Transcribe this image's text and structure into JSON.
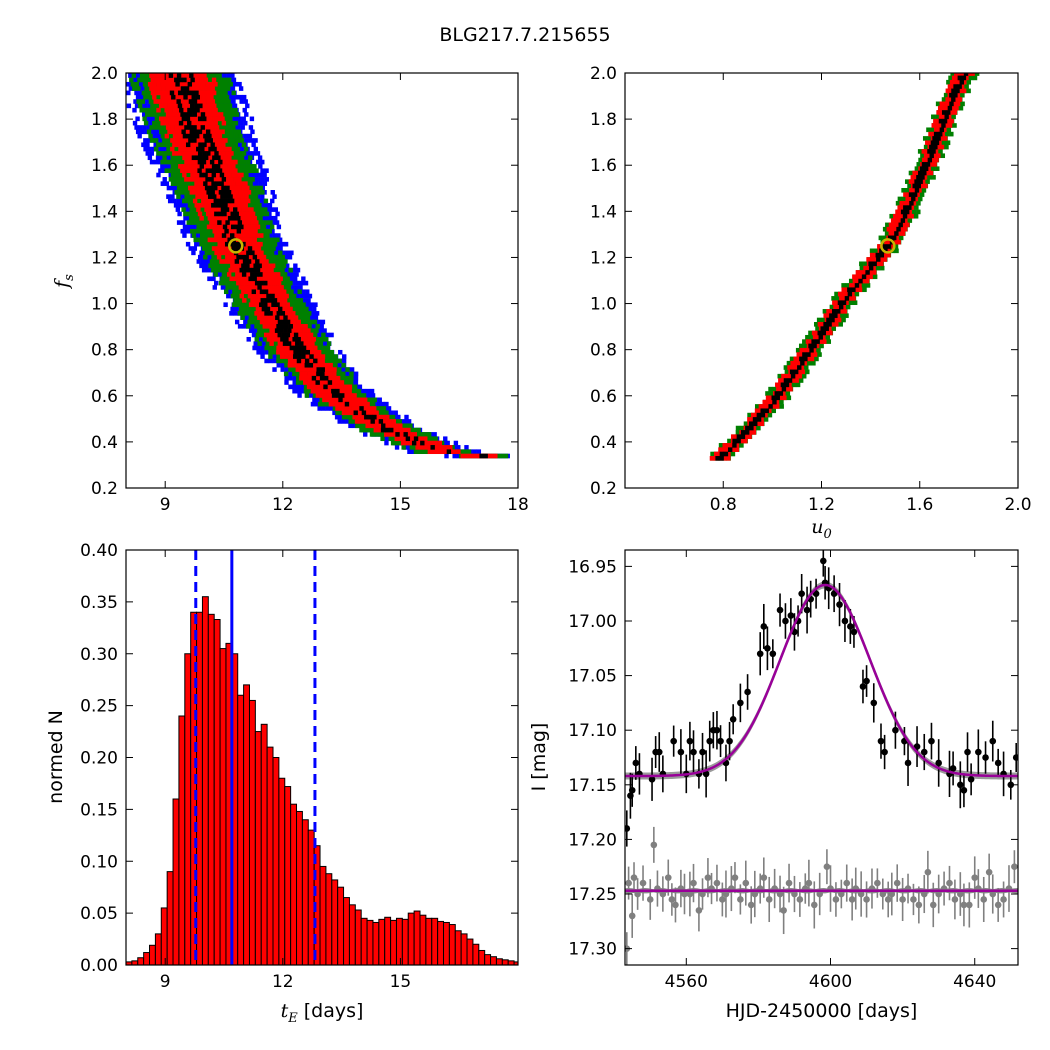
{
  "figure_title": "BLG217.7.215655",
  "chart_data": [
    {
      "id": "fs-vs-tE",
      "type": "heatmap",
      "title": "",
      "xlabel": "",
      "ylabel": "f_s",
      "ylabel_main": "f",
      "ylabel_sub": "s",
      "xlim": [
        8,
        18
      ],
      "ylim": [
        0.2,
        2.0
      ],
      "xticks": [
        "9",
        "12",
        "15",
        "18"
      ],
      "xtick_values": [
        9,
        12,
        15,
        18
      ],
      "yticks": [
        "0.2",
        "0.4",
        "0.6",
        "0.8",
        "1.0",
        "1.2",
        "1.4",
        "1.6",
        "1.8",
        "2.0"
      ],
      "ytick_values": [
        0.2,
        0.4,
        0.6,
        0.8,
        1.0,
        1.2,
        1.4,
        1.6,
        1.8,
        2.0
      ],
      "colors": {
        "1sigma": "#000000",
        "2sigma": "#ff0000",
        "3sigma": "#008000",
        "4sigma": "#0000ff",
        "marker": "#c8b400"
      },
      "ridge": [
        [
          9.3,
          2.0
        ],
        [
          9.8,
          1.7
        ],
        [
          10.3,
          1.5
        ],
        [
          10.8,
          1.25
        ],
        [
          11.6,
          1.0
        ],
        [
          12.3,
          0.8
        ],
        [
          13.3,
          0.6
        ],
        [
          14.6,
          0.45
        ],
        [
          16.0,
          0.35
        ],
        [
          17.0,
          0.33
        ]
      ],
      "widths": {
        "1sigma": 0.35,
        "2sigma": 0.85,
        "3sigma": 1.3,
        "4sigma": 1.6
      },
      "best_fit": [
        10.8,
        1.25
      ]
    },
    {
      "id": "fs-vs-u0",
      "type": "heatmap",
      "title": "",
      "xlabel": "u_0",
      "xlabel_main": "u",
      "xlabel_sub": "0",
      "ylabel": "",
      "xlim": [
        0.4,
        2.0
      ],
      "ylim": [
        0.2,
        2.0
      ],
      "xticks": [
        "0.8",
        "1.2",
        "1.6",
        "2.0"
      ],
      "xtick_values": [
        0.8,
        1.2,
        1.6,
        2.0
      ],
      "yticks": [
        "0.2",
        "0.4",
        "0.6",
        "0.8",
        "1.0",
        "1.2",
        "1.4",
        "1.6",
        "1.8",
        "2.0"
      ],
      "ytick_values": [
        0.2,
        0.4,
        0.6,
        0.8,
        1.0,
        1.2,
        1.4,
        1.6,
        1.8,
        2.0
      ],
      "ridge": [
        [
          0.78,
          0.32
        ],
        [
          0.9,
          0.45
        ],
        [
          1.0,
          0.57
        ],
        [
          1.1,
          0.72
        ],
        [
          1.2,
          0.87
        ],
        [
          1.3,
          1.03
        ],
        [
          1.4,
          1.16
        ],
        [
          1.47,
          1.25
        ],
        [
          1.55,
          1.42
        ],
        [
          1.65,
          1.67
        ],
        [
          1.72,
          1.87
        ],
        [
          1.78,
          2.0
        ]
      ],
      "widths": {
        "1sigma": 0.012,
        "2sigma": 0.035,
        "3sigma": 0.05
      },
      "best_fit": [
        1.47,
        1.25
      ]
    },
    {
      "id": "tE-histogram",
      "type": "bar",
      "title": "",
      "xlabel": "t_E  [days]",
      "xlabel_main": "t",
      "xlabel_sub": "E",
      "xlabel_rest": " [days]",
      "ylabel": "normed N",
      "xlim": [
        8.0,
        18.0
      ],
      "ylim": [
        0.0,
        0.4
      ],
      "xticks": [
        "9",
        "12",
        "15"
      ],
      "xtick_values": [
        9,
        12,
        15
      ],
      "yticks": [
        "0.00",
        "0.05",
        "0.10",
        "0.15",
        "0.20",
        "0.25",
        "0.30",
        "0.35",
        "0.40"
      ],
      "ytick_values": [
        0.0,
        0.05,
        0.1,
        0.15,
        0.2,
        0.25,
        0.3,
        0.35,
        0.4
      ],
      "bin_start": 8.0,
      "bin_width": 0.15,
      "values": [
        0.003,
        0.004,
        0.007,
        0.012,
        0.019,
        0.03,
        0.055,
        0.09,
        0.16,
        0.24,
        0.3,
        0.34,
        0.34,
        0.355,
        0.338,
        0.333,
        0.305,
        0.31,
        0.3,
        0.26,
        0.27,
        0.255,
        0.225,
        0.232,
        0.21,
        0.2,
        0.18,
        0.172,
        0.155,
        0.148,
        0.14,
        0.13,
        0.115,
        0.095,
        0.088,
        0.082,
        0.075,
        0.065,
        0.058,
        0.053,
        0.045,
        0.043,
        0.041,
        0.044,
        0.046,
        0.043,
        0.045,
        0.044,
        0.05,
        0.052,
        0.048,
        0.045,
        0.045,
        0.042,
        0.041,
        0.039,
        0.033,
        0.03,
        0.025,
        0.02,
        0.014,
        0.01,
        0.008,
        0.006,
        0.005,
        0.004,
        0.003
      ],
      "median": 10.7,
      "bounds": [
        9.78,
        12.82
      ],
      "bar_color": "#ff0000",
      "line_color": "#0000ff"
    },
    {
      "id": "light-curve",
      "type": "scatter",
      "title": "",
      "xlabel": "HJD-2450000 [days]",
      "ylabel": "I [mag]",
      "xlim": [
        4543,
        4652
      ],
      "ylim": [
        17.315,
        16.935
      ],
      "xticks": [
        "4560",
        "4600",
        "4640"
      ],
      "xtick_values": [
        4560,
        4600,
        4640
      ],
      "yticks": [
        "16.95",
        "17.00",
        "17.05",
        "17.10",
        "17.15",
        "17.20",
        "17.25",
        "17.30"
      ],
      "ytick_values": [
        16.95,
        17.0,
        17.05,
        17.1,
        17.15,
        17.2,
        17.25,
        17.3
      ],
      "model": {
        "t0": 4598.5,
        "baseline": 17.142,
        "peak": 16.967,
        "width": 12.5
      },
      "residual_baseline": 17.247,
      "series": [
        {
          "color": "#000000",
          "points": [
            [
              4543.5,
              17.19
            ],
            [
              4544.5,
              17.16
            ],
            [
              4545,
              17.155
            ],
            [
              4546,
              17.13
            ],
            [
              4547,
              17.14
            ],
            [
              4550.5,
              17.145
            ],
            [
              4551.5,
              17.12
            ],
            [
              4552.5,
              17.12
            ],
            [
              4553.5,
              17.14
            ],
            [
              4556.5,
              17.11
            ],
            [
              4558.5,
              17.12
            ],
            [
              4560,
              17.14
            ],
            [
              4561,
              17.11
            ],
            [
              4562,
              17.12
            ],
            [
              4563.5,
              17.14
            ],
            [
              4564.5,
              17.12
            ],
            [
              4565.5,
              17.14
            ],
            [
              4566.5,
              17.11
            ],
            [
              4567.5,
              17.1
            ],
            [
              4568.5,
              17.1
            ],
            [
              4569.5,
              17.11
            ],
            [
              4571,
              17.13
            ],
            [
              4572,
              17.11
            ],
            [
              4573,
              17.09
            ],
            [
              4575,
              17.075
            ],
            [
              4577,
              17.065
            ],
            [
              4580.5,
              17.03
            ],
            [
              4581.5,
              17.005
            ],
            [
              4582.5,
              17.025
            ],
            [
              4584,
              17.03
            ],
            [
              4586,
              16.99
            ],
            [
              4587.5,
              17.0
            ],
            [
              4589,
              16.995
            ],
            [
              4590,
              17.01
            ],
            [
              4591,
              17.0
            ],
            [
              4592,
              16.975
            ],
            [
              4593.5,
              16.99
            ],
            [
              4594.5,
              16.98
            ],
            [
              4596,
              16.975
            ],
            [
              4598,
              16.945
            ],
            [
              4598.5,
              16.965
            ],
            [
              4599.5,
              16.97
            ],
            [
              4601,
              16.975
            ],
            [
              4602.5,
              16.985
            ],
            [
              4604,
              17.0
            ],
            [
              4605.5,
              17.005
            ],
            [
              4606.5,
              17.01
            ],
            [
              4609,
              17.06
            ],
            [
              4610,
              17.055
            ],
            [
              4612,
              17.075
            ],
            [
              4614,
              17.11
            ],
            [
              4615,
              17.12
            ],
            [
              4618,
              17.1
            ],
            [
              4620.5,
              17.11
            ],
            [
              4621.5,
              17.13
            ],
            [
              4624,
              17.115
            ],
            [
              4626,
              17.12
            ],
            [
              4628,
              17.11
            ],
            [
              4630,
              17.13
            ],
            [
              4633,
              17.14
            ],
            [
              4634,
              17.135
            ],
            [
              4636,
              17.15
            ],
            [
              4637,
              17.155
            ],
            [
              4638,
              17.12
            ],
            [
              4639,
              17.145
            ],
            [
              4641,
              17.12
            ],
            [
              4643,
              17.125
            ],
            [
              4645,
              17.11
            ],
            [
              4646.5,
              17.13
            ],
            [
              4648,
              17.14
            ],
            [
              4650,
              17.15
            ],
            [
              4651.5,
              17.125
            ]
          ]
        },
        {
          "color": "#808080",
          "points": [
            [
              4543.5,
              17.3
            ],
            [
              4544,
              17.24
            ],
            [
              4545,
              17.27
            ],
            [
              4545.5,
              17.235
            ],
            [
              4546.5,
              17.25
            ],
            [
              4548,
              17.24
            ],
            [
              4550,
              17.255
            ],
            [
              4551,
              17.205
            ],
            [
              4552,
              17.245
            ],
            [
              4553.5,
              17.25
            ],
            [
              4555,
              17.235
            ],
            [
              4556,
              17.255
            ],
            [
              4557,
              17.26
            ],
            [
              4558.5,
              17.245
            ],
            [
              4559.5,
              17.25
            ],
            [
              4561,
              17.25
            ],
            [
              4562,
              17.24
            ],
            [
              4563.5,
              17.265
            ],
            [
              4564.5,
              17.25
            ],
            [
              4566,
              17.235
            ],
            [
              4567,
              17.245
            ],
            [
              4568.5,
              17.24
            ],
            [
              4570,
              17.255
            ],
            [
              4571,
              17.25
            ],
            [
              4572.5,
              17.245
            ],
            [
              4573.5,
              17.235
            ],
            [
              4575,
              17.255
            ],
            [
              4576.5,
              17.24
            ],
            [
              4578,
              17.26
            ],
            [
              4579,
              17.25
            ],
            [
              4580.5,
              17.245
            ],
            [
              4581.5,
              17.235
            ],
            [
              4583,
              17.255
            ],
            [
              4584.5,
              17.245
            ],
            [
              4586,
              17.25
            ],
            [
              4587,
              17.265
            ],
            [
              4588.5,
              17.24
            ],
            [
              4590,
              17.25
            ],
            [
              4591.5,
              17.255
            ],
            [
              4593,
              17.245
            ],
            [
              4594,
              17.24
            ],
            [
              4595.5,
              17.26
            ],
            [
              4597,
              17.25
            ],
            [
              4599,
              17.225
            ],
            [
              4600,
              17.245
            ],
            [
              4601.5,
              17.255
            ],
            [
              4603,
              17.25
            ],
            [
              4604.5,
              17.24
            ],
            [
              4606,
              17.255
            ],
            [
              4607,
              17.245
            ],
            [
              4608.5,
              17.25
            ],
            [
              4610,
              17.255
            ],
            [
              4611.5,
              17.245
            ],
            [
              4613,
              17.24
            ],
            [
              4614.5,
              17.25
            ],
            [
              4616,
              17.255
            ],
            [
              4617,
              17.25
            ],
            [
              4618.5,
              17.24
            ],
            [
              4620,
              17.255
            ],
            [
              4621.5,
              17.245
            ],
            [
              4623,
              17.255
            ],
            [
              4624.5,
              17.26
            ],
            [
              4626,
              17.25
            ],
            [
              4627,
              17.23
            ],
            [
              4628.5,
              17.26
            ],
            [
              4630,
              17.25
            ],
            [
              4631.5,
              17.245
            ],
            [
              4633,
              17.24
            ],
            [
              4634.5,
              17.255
            ],
            [
              4636,
              17.25
            ],
            [
              4637,
              17.26
            ],
            [
              4638.5,
              17.26
            ],
            [
              4640,
              17.235
            ],
            [
              4641,
              17.245
            ],
            [
              4642.5,
              17.255
            ],
            [
              4644,
              17.23
            ],
            [
              4645,
              17.25
            ],
            [
              4646.5,
              17.26
            ],
            [
              4648,
              17.255
            ],
            [
              4649.5,
              17.245
            ],
            [
              4651,
              17.225
            ]
          ]
        }
      ]
    }
  ]
}
